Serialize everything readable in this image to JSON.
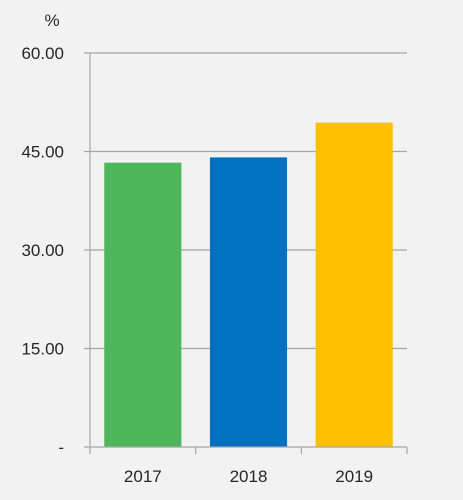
{
  "chart_data": {
    "type": "bar",
    "unit_label": "%",
    "categories": [
      "2017",
      "2018",
      "2019"
    ],
    "values": [
      43.3,
      44.1,
      49.4
    ],
    "bar_colors": [
      "#4db65a",
      "#0070c0",
      "#ffc000"
    ],
    "ylim": [
      0,
      60
    ],
    "yticks": [
      0,
      15,
      30,
      45,
      60
    ],
    "ytick_labels": [
      "-",
      "15.00",
      "30.00",
      "45.00",
      "60.00"
    ],
    "grid": "horizontal",
    "background": "#f2f2f2",
    "axis_color": "#a6a6a6"
  }
}
